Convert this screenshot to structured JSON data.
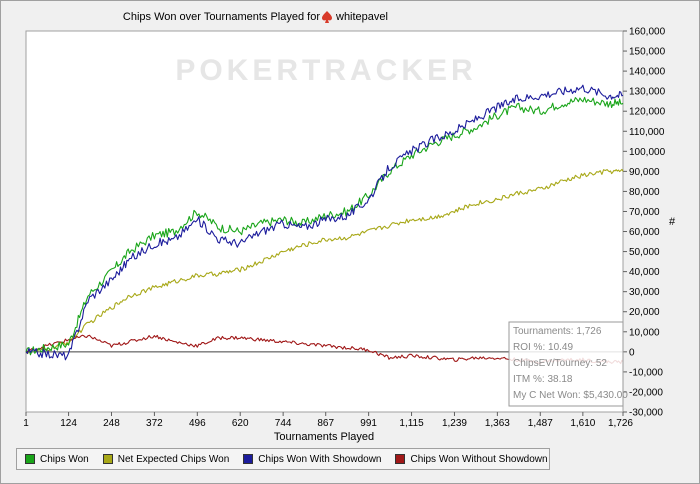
{
  "chart_data": {
    "type": "line",
    "title": "Chips Won over Tournaments Played for",
    "player": "whitepavel",
    "watermark": "POKERTRACKER",
    "xlabel": "Tournaments Played",
    "ylabel": "#",
    "xlim": [
      1,
      1726
    ],
    "ylim": [
      -30000,
      160000
    ],
    "x_ticks": [
      1,
      124,
      248,
      372,
      496,
      620,
      744,
      867,
      991,
      1115,
      1239,
      1363,
      1487,
      1610,
      1726
    ],
    "x_tick_labels": [
      "1",
      "124",
      "248",
      "372",
      "496",
      "620",
      "744",
      "867",
      "991",
      "1,115",
      "1,239",
      "1,363",
      "1,487",
      "1,610",
      "1,726"
    ],
    "y_ticks": [
      -30000,
      -20000,
      -10000,
      0,
      10000,
      20000,
      30000,
      40000,
      50000,
      60000,
      70000,
      80000,
      90000,
      100000,
      110000,
      120000,
      130000,
      140000,
      150000,
      160000
    ],
    "y_tick_labels": [
      "-30,000",
      "-20,000",
      "-10,000",
      "0",
      "10,000",
      "20,000",
      "30,000",
      "40,000",
      "50,000",
      "60,000",
      "70,000",
      "80,000",
      "90,000",
      "100,000",
      "110,000",
      "120,000",
      "130,000",
      "140,000",
      "150,000",
      "160,000"
    ],
    "grid": false,
    "x": [
      1,
      60,
      124,
      180,
      248,
      300,
      372,
      430,
      496,
      560,
      620,
      680,
      744,
      800,
      867,
      930,
      991,
      1050,
      1115,
      1180,
      1239,
      1300,
      1363,
      1420,
      1487,
      1550,
      1610,
      1680,
      1726
    ],
    "series": [
      {
        "name": "Chips Won",
        "color": "#1aa51a",
        "values": [
          0,
          2000,
          4000,
          28000,
          40000,
          50000,
          58000,
          60000,
          70000,
          62000,
          60000,
          64000,
          66000,
          64000,
          68000,
          70000,
          78000,
          90000,
          98000,
          104000,
          108000,
          112000,
          118000,
          122000,
          120000,
          124000,
          126000,
          124000,
          124000
        ]
      },
      {
        "name": "Net Expected Chips Won",
        "color": "#a8a818",
        "values": [
          0,
          1000,
          5000,
          14000,
          22000,
          28000,
          32000,
          35000,
          38000,
          39000,
          41000,
          45000,
          50000,
          53000,
          56000,
          57000,
          60000,
          63000,
          66000,
          67000,
          70000,
          74000,
          76000,
          79000,
          81000,
          85000,
          88000,
          90000,
          90000
        ]
      },
      {
        "name": "Chips Won With Showdown",
        "color": "#1c1c9c",
        "values": [
          0,
          -1000,
          -2000,
          26000,
          36000,
          46000,
          54000,
          56000,
          66000,
          56000,
          54000,
          60000,
          64000,
          62000,
          66000,
          68000,
          76000,
          92000,
          100000,
          106000,
          110000,
          116000,
          122000,
          126000,
          128000,
          130000,
          132000,
          128000,
          128000
        ]
      },
      {
        "name": "Chips Won Without Showdown",
        "color": "#a01818",
        "values": [
          0,
          3000,
          6000,
          8000,
          3000,
          5000,
          8000,
          5000,
          3000,
          7000,
          7000,
          6000,
          5000,
          4000,
          3000,
          2000,
          1000,
          -3000,
          -2000,
          -3000,
          -4000,
          -3000,
          -3000,
          -4000,
          -5000,
          -4000,
          -4000,
          -5000,
          -5000
        ]
      }
    ],
    "tooltip": {
      "lines": [
        "Tournaments: 1,726",
        "ROI %: 10.49",
        "ChipsEV/Tourney: 52",
        "ITM %: 38.18",
        "My C Net Won: $5,430.00"
      ]
    },
    "legend_position": "bottom-left"
  },
  "colors": {
    "background": "#f0f0f0",
    "plot_background": "#ffffff",
    "zero_line": "#404040",
    "watermark": "#e4e4e4"
  }
}
